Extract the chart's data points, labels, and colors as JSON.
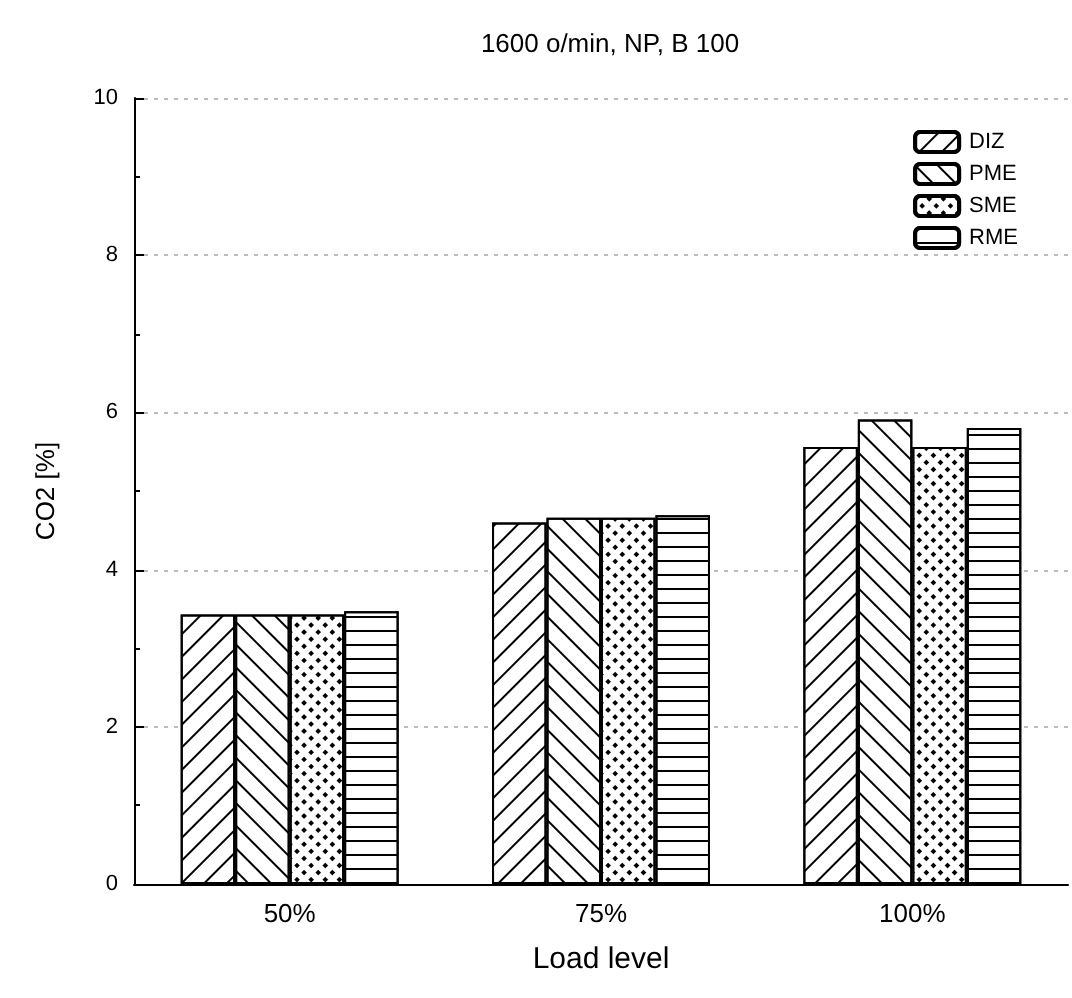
{
  "chart_data": {
    "type": "bar",
    "title": "1600 o/min, NP, B 100",
    "xlabel": "Load level",
    "ylabel": "CO2 [%]",
    "categories": [
      "50%",
      "75%",
      "100%"
    ],
    "series": [
      {
        "name": "DIZ",
        "color": "#ffffff",
        "values": [
          3.43,
          4.6,
          5.56
        ]
      },
      {
        "name": "PME",
        "color": "#ffffff",
        "values": [
          3.43,
          4.66,
          5.91
        ]
      },
      {
        "name": "SME",
        "color": "#ffffff",
        "values": [
          3.43,
          4.66,
          5.56
        ]
      },
      {
        "name": "RME",
        "color": "#ffffff",
        "values": [
          3.47,
          4.69,
          5.8
        ]
      }
    ],
    "ylim": [
      0,
      10
    ],
    "yticks": [
      0,
      2,
      4,
      6,
      8,
      10
    ],
    "grid": "y",
    "legend": "top right"
  }
}
